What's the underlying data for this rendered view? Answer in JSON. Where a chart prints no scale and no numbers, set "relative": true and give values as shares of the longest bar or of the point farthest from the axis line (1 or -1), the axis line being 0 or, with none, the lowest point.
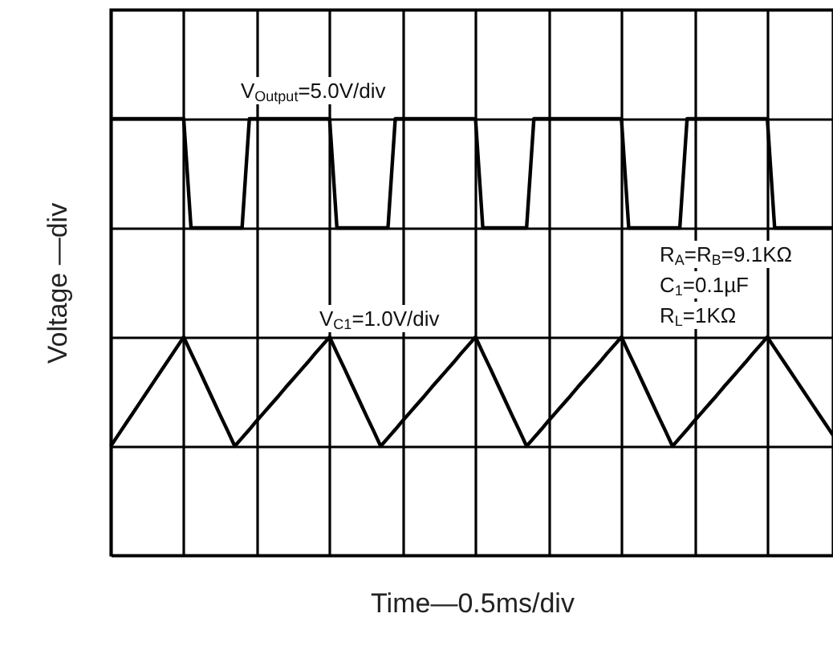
{
  "chart_data": {
    "type": "line",
    "xlabel": "Time—0.5ms/div",
    "ylabel": "Voltage —div",
    "relative": true,
    "grid": true,
    "line_style": "solid",
    "categories": [
      null,
      null,
      null,
      null,
      null,
      null,
      null,
      null,
      null,
      null,
      null,
      null,
      null,
      null,
      null,
      null,
      null,
      null,
      null,
      null,
      null,
      null,
      null,
      null,
      null,
      null,
      null,
      null,
      null,
      null,
      null,
      null,
      null,
      null,
      null,
      null,
      null,
      null,
      null,
      null,
      null,
      null,
      null,
      null,
      null,
      null,
      null,
      null,
      null,
      null,
      null,
      null,
      null,
      null,
      null,
      null,
      null,
      null,
      null,
      null,
      null,
      null,
      null,
      null,
      null,
      null,
      null,
      null,
      null,
      null,
      null,
      null,
      null,
      null,
      null,
      null,
      null,
      null,
      null,
      null,
      null,
      null,
      null,
      null,
      null,
      null,
      null,
      null,
      null,
      null,
      null,
      null,
      null,
      null,
      null,
      null,
      null,
      null,
      null,
      null
    ],
    "series": [
      {
        "color": "#000000",
        "values": [
          1,
          1,
          1,
          1,
          1,
          1,
          1,
          1,
          1,
          1,
          1,
          0.75,
          0.75,
          0.75,
          0.75,
          0.75,
          0.75,
          0.75,
          0.75,
          1,
          1,
          1,
          1,
          1,
          1,
          1,
          1,
          1,
          1,
          1,
          1,
          0.75,
          0.75,
          0.75,
          0.75,
          0.75,
          0.75,
          0.75,
          0.75,
          1,
          1,
          1,
          1,
          1,
          1,
          1,
          1,
          1,
          1,
          1,
          1,
          0.75,
          0.75,
          0.75,
          0.75,
          0.75,
          0.75,
          0.75,
          1,
          1,
          1,
          1,
          1,
          1,
          1,
          1,
          1,
          1,
          1,
          1,
          1,
          0.75,
          0.75,
          0.75,
          0.75,
          0.75,
          0.75,
          0.75,
          0.75,
          1,
          1,
          1,
          1,
          1,
          1,
          1,
          1,
          1,
          1,
          1,
          1,
          0.75,
          0.75,
          0.75,
          0.75,
          0.75,
          0.75,
          0.75,
          0.75,
          0.75
        ]
      },
      {
        "color": "#000000",
        "values": [
          0.25,
          0.275,
          0.3,
          0.325,
          0.35,
          0.375,
          0.4,
          0.425,
          0.45,
          0.475,
          0.5,
          0.464,
          0.429,
          0.393,
          0.357,
          0.321,
          0.286,
          0.25,
          0.269,
          0.288,
          0.308,
          0.327,
          0.346,
          0.365,
          0.385,
          0.404,
          0.423,
          0.442,
          0.462,
          0.481,
          0.5,
          0.464,
          0.429,
          0.393,
          0.357,
          0.321,
          0.286,
          0.25,
          0.269,
          0.288,
          0.308,
          0.327,
          0.346,
          0.365,
          0.385,
          0.404,
          0.423,
          0.442,
          0.462,
          0.481,
          0.5,
          0.464,
          0.429,
          0.393,
          0.357,
          0.321,
          0.286,
          0.25,
          0.269,
          0.288,
          0.308,
          0.327,
          0.346,
          0.365,
          0.385,
          0.404,
          0.423,
          0.442,
          0.462,
          0.481,
          0.5,
          0.464,
          0.429,
          0.393,
          0.357,
          0.321,
          0.286,
          0.25,
          0.269,
          0.288,
          0.308,
          0.327,
          0.346,
          0.365,
          0.385,
          0.404,
          0.423,
          0.442,
          0.462,
          0.481,
          0.5,
          0.475,
          0.45,
          0.425,
          0.4,
          0.375,
          0.35,
          0.325,
          0.3,
          0.275
        ]
      }
    ],
    "annotations": [
      "V$_{Output}$=5.0V/div",
      "V$_{C1}$=1.0V/div",
      "R$_{A}$=R$_{B}$=9.1KΩ",
      "C$_{1}$=0.1µF",
      "R$_{L}$=1KΩ"
    ]
  }
}
